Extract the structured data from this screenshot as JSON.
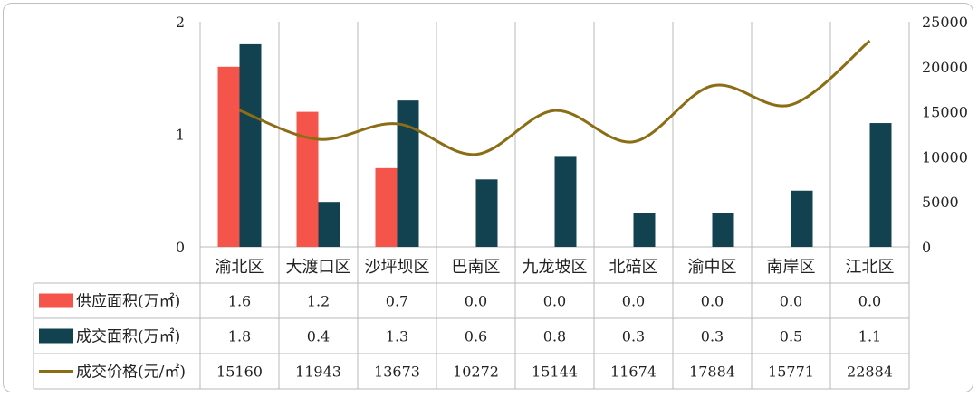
{
  "chart_data": {
    "type": "bar",
    "title": "",
    "categories": [
      "渝北区",
      "大渡口区",
      "沙坪坝区",
      "巴南区",
      "九龙坡区",
      "北碚区",
      "渝中区",
      "南岸区",
      "江北区"
    ],
    "series": [
      {
        "name": "供应面积(万㎡)",
        "type": "bar",
        "axis": "left",
        "color": "#f4544a",
        "values": [
          1.6,
          1.2,
          0.7,
          0.0,
          0.0,
          0.0,
          0.0,
          0.0,
          0.0
        ],
        "labels": [
          "1.6",
          "1.2",
          "0.7",
          "0.0",
          "0.0",
          "0.0",
          "0.0",
          "0.0",
          "0.0"
        ]
      },
      {
        "name": "成交面积(万㎡)",
        "type": "bar",
        "axis": "left",
        "color": "#12424f",
        "values": [
          1.8,
          0.4,
          1.3,
          0.6,
          0.8,
          0.3,
          0.3,
          0.5,
          1.1
        ],
        "labels": [
          "1.8",
          "0.4",
          "1.3",
          "0.6",
          "0.8",
          "0.3",
          "0.3",
          "0.5",
          "1.1"
        ]
      },
      {
        "name": "成交价格(元/㎡)",
        "type": "line",
        "axis": "right",
        "color": "#8a6d14",
        "values": [
          15160,
          11943,
          13673,
          10272,
          15144,
          11674,
          17884,
          15771,
          22884
        ],
        "labels": [
          "15160",
          "11943",
          "13673",
          "10272",
          "15144",
          "11674",
          "17884",
          "15771",
          "22884"
        ]
      }
    ],
    "y_left": {
      "ylim": [
        0,
        2
      ],
      "ticks": [
        "0",
        "1",
        "2"
      ]
    },
    "y_right": {
      "ylim": [
        0,
        25000
      ],
      "ticks": [
        "0",
        "5000",
        "10000",
        "15000",
        "20000",
        "25000"
      ]
    },
    "grid": "vertical category separators",
    "legend": "data table rows below the chart"
  }
}
